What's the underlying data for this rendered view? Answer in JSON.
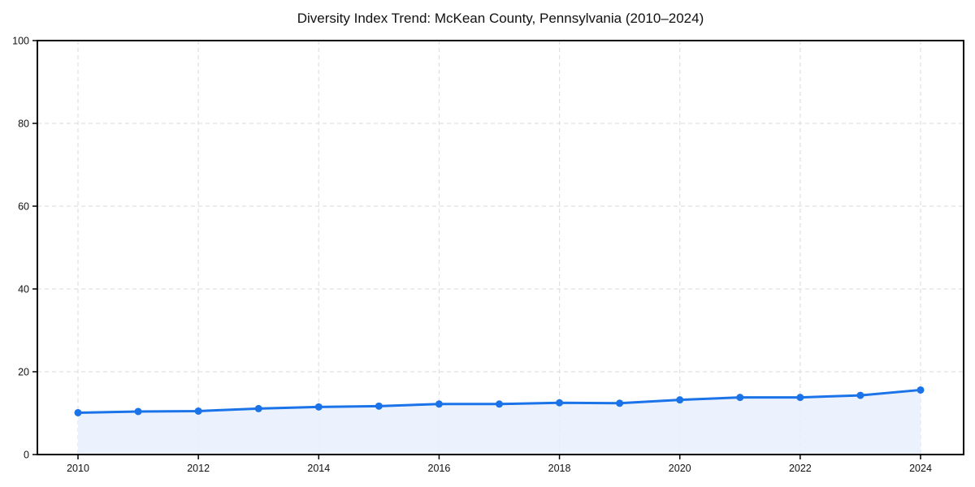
{
  "title": "Diversity Index Trend: McKean County, Pennsylvania (2010–2024)",
  "chart_data": {
    "type": "area",
    "title": "Diversity Index Trend: McKean County, Pennsylvania (2010–2024)",
    "xlabel": "",
    "ylabel": "",
    "x": [
      2010,
      2011,
      2012,
      2013,
      2014,
      2015,
      2016,
      2017,
      2018,
      2019,
      2020,
      2021,
      2022,
      2023,
      2024
    ],
    "values": [
      10.1,
      10.4,
      10.5,
      11.1,
      11.5,
      11.7,
      12.2,
      12.2,
      12.5,
      12.4,
      13.2,
      13.8,
      13.8,
      14.3,
      15.6
    ],
    "ylim": [
      0,
      100
    ],
    "yticks": [
      0,
      20,
      40,
      60,
      80,
      100
    ],
    "xticks": [
      2010,
      2012,
      2014,
      2016,
      2018,
      2020,
      2022,
      2024
    ],
    "grid": true,
    "grid_style": "dashed",
    "legend": "none",
    "colors": {
      "line": "#1a73e8",
      "marker": "#1a73e8",
      "fill": "#e8f0fe",
      "grid": "#e0e0e0",
      "axis": "#000000",
      "text": "#111111",
      "background": "#ffffff"
    }
  }
}
